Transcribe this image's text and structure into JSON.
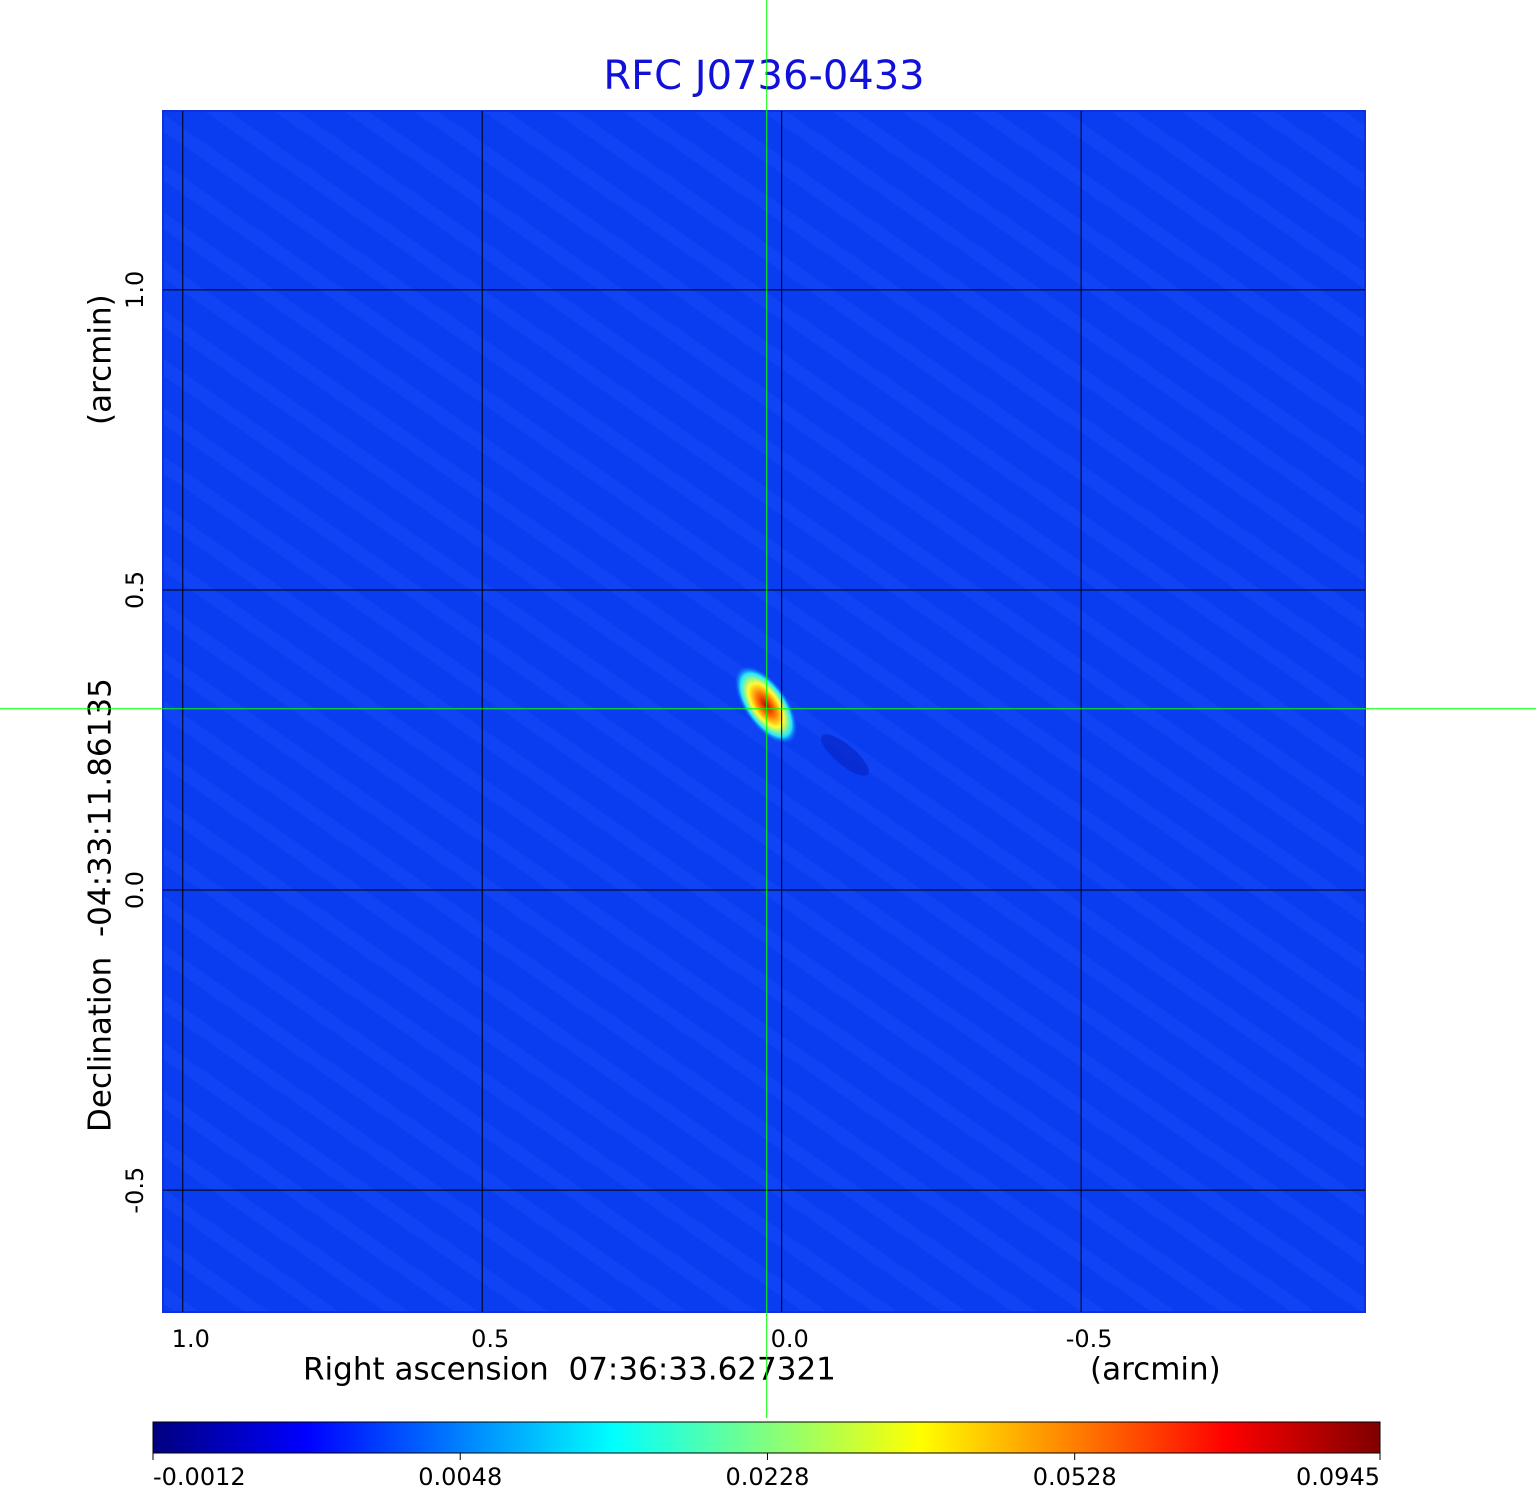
{
  "chart_data": {
    "type": "image",
    "title": "RFC J0736-0433",
    "x_label": "Right ascension  07:36:33.627321",
    "x_unit": "(arcmin)",
    "y_label": "Declination  -04:33:11.86135",
    "y_unit": "(arcmin)",
    "xlim": [
      1.033,
      -0.974
    ],
    "ylim": [
      -0.703,
      1.298
    ],
    "xticks": [
      {
        "value": 1,
        "label": "1.0"
      },
      0.5,
      {
        "value": 0,
        "label": "0.0"
      },
      -0.5
    ],
    "yticks": [
      {
        "value": 1,
        "label": "1.0"
      },
      0.5,
      {
        "value": 0,
        "label": "0.0"
      },
      -0.5
    ],
    "grid": true,
    "crosshair": {
      "x": 0.025,
      "y": 0.302,
      "color": "#00ff00"
    },
    "colormap": "jet",
    "colorbar": {
      "scale": "sqrt",
      "clim": [
        -0.0012,
        0.0945
      ],
      "ticks": [
        -0.0012,
        0.0048,
        0.0228,
        0.0528,
        0.0945
      ]
    }
  }
}
